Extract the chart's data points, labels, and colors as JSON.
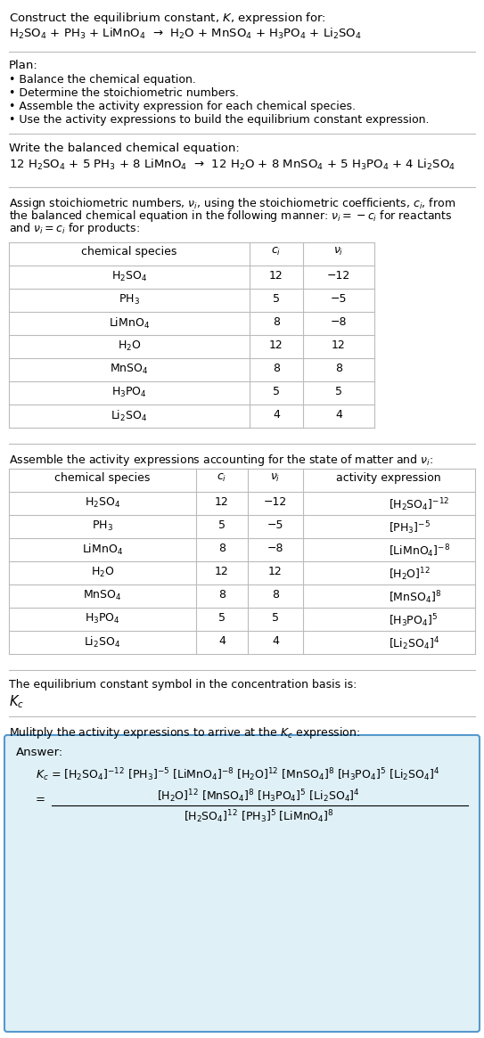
{
  "bg_color": "#ffffff",
  "line_color": "#bbbbbb",
  "answer_box_color": "#dff0f7",
  "answer_box_edge": "#5599cc",
  "text_color": "#000000",
  "title_line1": "Construct the equilibrium constant, $K$, expression for:",
  "title_chem": "H$_2$SO$_4$ + PH$_3$ + LiMnO$_4$  →  H$_2$O + MnSO$_4$ + H$_3$PO$_4$ + Li$_2$SO$_4$",
  "plan_header": "Plan:",
  "plan_items": [
    "• Balance the chemical equation.",
    "• Determine the stoichiometric numbers.",
    "• Assemble the activity expression for each chemical species.",
    "• Use the activity expressions to build the equilibrium constant expression."
  ],
  "balanced_header": "Write the balanced chemical equation:",
  "balanced_chem": "12 H$_2$SO$_4$ + 5 PH$_3$ + 8 LiMnO$_4$  →  12 H$_2$O + 8 MnSO$_4$ + 5 H$_3$PO$_4$ + 4 Li$_2$SO$_4$",
  "stoich_para": [
    "Assign stoichiometric numbers, $\\nu_i$, using the stoichiometric coefficients, $c_i$, from",
    "the balanced chemical equation in the following manner: $\\nu_i = -c_i$ for reactants",
    "and $\\nu_i = c_i$ for products:"
  ],
  "t1_headers": [
    "chemical species",
    "$c_i$",
    "$\\nu_i$"
  ],
  "t1_rows": [
    [
      "H$_2$SO$_4$",
      "12",
      "−12"
    ],
    [
      "PH$_3$",
      "5",
      "−5"
    ],
    [
      "LiMnO$_4$",
      "8",
      "−8"
    ],
    [
      "H$_2$O",
      "12",
      "12"
    ],
    [
      "MnSO$_4$",
      "8",
      "8"
    ],
    [
      "H$_3$PO$_4$",
      "5",
      "5"
    ],
    [
      "Li$_2$SO$_4$",
      "4",
      "4"
    ]
  ],
  "activity_para": "Assemble the activity expressions accounting for the state of matter and $\\nu_i$:",
  "t2_headers": [
    "chemical species",
    "$c_i$",
    "$\\nu_i$",
    "activity expression"
  ],
  "t2_rows": [
    [
      "H$_2$SO$_4$",
      "12",
      "−12",
      "[H$_2$SO$_4$]$^{-12}$"
    ],
    [
      "PH$_3$",
      "5",
      "−5",
      "[PH$_3$]$^{-5}$"
    ],
    [
      "LiMnO$_4$",
      "8",
      "−8",
      "[LiMnO$_4$]$^{-8}$"
    ],
    [
      "H$_2$O",
      "12",
      "12",
      "[H$_2$O]$^{12}$"
    ],
    [
      "MnSO$_4$",
      "8",
      "8",
      "[MnSO$_4$]$^{8}$"
    ],
    [
      "H$_3$PO$_4$",
      "5",
      "5",
      "[H$_3$PO$_4$]$^{5}$"
    ],
    [
      "Li$_2$SO$_4$",
      "4",
      "4",
      "[Li$_2$SO$_4$]$^{4}$"
    ]
  ],
  "kc_para": "The equilibrium constant symbol in the concentration basis is:",
  "kc_sym": "$K_c$",
  "mult_para": "Mulitply the activity expressions to arrive at the $K_c$ expression:",
  "answer_label": "Answer:",
  "kc_eq1": "$K_c$ = [H$_2$SO$_4$]$^{-12}$ [PH$_3$]$^{-5}$ [LiMnO$_4$]$^{-8}$ [H$_2$O]$^{12}$ [MnSO$_4$]$^{8}$ [H$_3$PO$_4$]$^{5}$ [Li$_2$SO$_4$]$^{4}$",
  "kc_num": "[H$_2$O]$^{12}$ [MnSO$_4$]$^{8}$ [H$_3$PO$_4$]$^{5}$ [Li$_2$SO$_4$]$^{4}$",
  "kc_den": "[H$_2$SO$_4$]$^{12}$ [PH$_3$]$^{5}$ [LiMnO$_4$]$^{8}$"
}
